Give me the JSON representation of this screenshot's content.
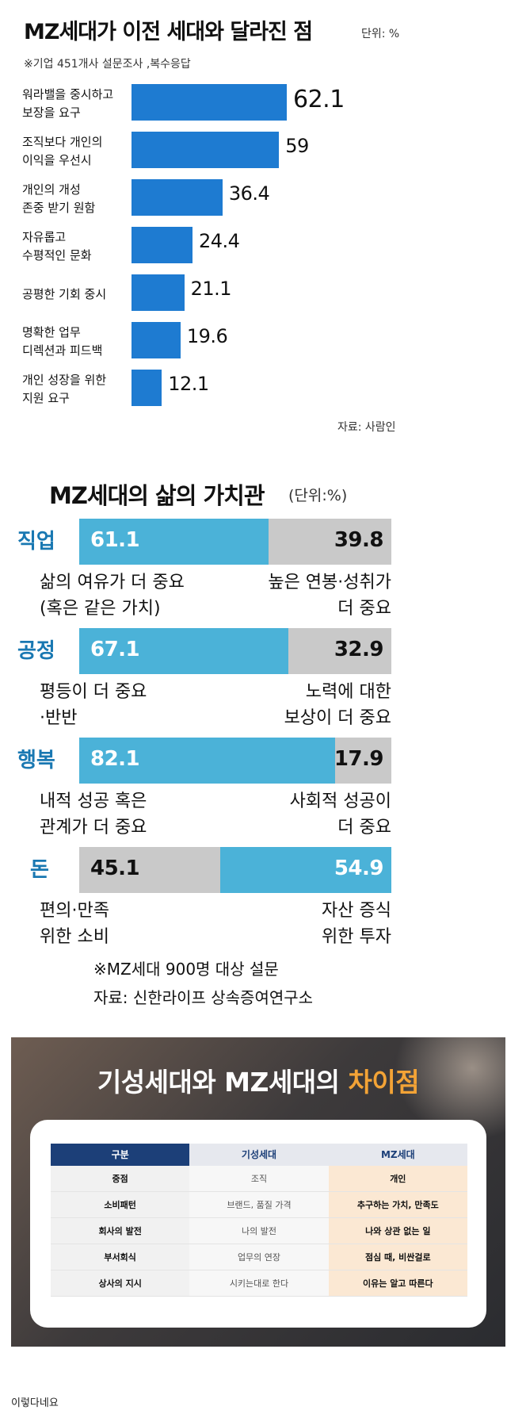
{
  "chart_data": [
    {
      "type": "bar",
      "orientation": "horizontal",
      "title": "MZ세대가 이전 세대와 달라진 점",
      "unit": "단위: %",
      "note": "※기업 451개사 설문조사 ,복수응답",
      "source": "자료: 사람인",
      "categories": [
        [
          "워라밸을 중시하고",
          "보장을 요구"
        ],
        [
          "조직보다 개인의",
          "이익을 우선시"
        ],
        [
          "개인의 개성",
          "존중 받기 원함"
        ],
        [
          "자유롭고",
          "수평적인 문화"
        ],
        [
          "공평한 기회 중시"
        ],
        [
          "명확한 업무",
          "디렉션과 피드백"
        ],
        [
          "개인 성장을 위한",
          "지원 요구"
        ]
      ],
      "values": [
        62.1,
        59,
        36.4,
        24.4,
        21.1,
        19.6,
        12.1
      ],
      "value_labels": [
        "62.1",
        "59",
        "36.4",
        "24.4",
        "21.1",
        "19.6",
        "12.1"
      ],
      "xlim": [
        0,
        62.1
      ],
      "color": "#1e7bd1"
    },
    {
      "type": "bar",
      "orientation": "horizontal-stacked",
      "title": "MZ세대의 삶의 가치관",
      "unit": "(단위:%)",
      "rows": [
        {
          "category": "직업",
          "left_value": 61.1,
          "right_value": 39.8,
          "left_label": "61.1",
          "right_label": "39.8",
          "left_color": "#4bb2d8",
          "right_color": "#c9c9c9",
          "left_text": [
            "삶의 여유가 더 중요",
            "(혹은 같은 가치)"
          ],
          "right_text": [
            "높은 연봉·성취가",
            "더 중요"
          ]
        },
        {
          "category": "공정",
          "left_value": 67.1,
          "right_value": 32.9,
          "left_label": "67.1",
          "right_label": "32.9",
          "left_color": "#4bb2d8",
          "right_color": "#c9c9c9",
          "left_text": [
            "평등이 더 중요",
            "·반반"
          ],
          "right_text": [
            "노력에 대한",
            "보상이 더 중요"
          ]
        },
        {
          "category": "행복",
          "left_value": 82.1,
          "right_value": 17.9,
          "left_label": "82.1",
          "right_label": "17.9",
          "left_color": "#4bb2d8",
          "right_color": "#c9c9c9",
          "left_text": [
            "내적 성공 혹은",
            "관계가 더 중요"
          ],
          "right_text": [
            "사회적 성공이",
            "더 중요"
          ]
        },
        {
          "category": "돈",
          "left_value": 45.1,
          "right_value": 54.9,
          "left_label": "45.1",
          "right_label": "54.9",
          "left_color": "#c9c9c9",
          "right_color": "#4bb2d8",
          "left_text": [
            "편의·만족",
            "위한 소비"
          ],
          "right_text": [
            "자산 증식",
            "위한 투자"
          ]
        }
      ],
      "footnotes": [
        "※MZ세대 900명 대상 설문",
        "자료: 신한라이프 상속증여연구소"
      ]
    },
    {
      "type": "table",
      "title_main": "기성세대와 MZ세대의 ",
      "title_highlight": "차이점",
      "highlight_color": "#f3a336",
      "columns": [
        "구분",
        "기성세대",
        "MZ세대"
      ],
      "rows": [
        [
          "중점",
          "조직",
          "개인"
        ],
        [
          "소비패턴",
          "브랜드, 품질 가격",
          "추구하는 가치, 만족도"
        ],
        [
          "회사의 발전",
          "나의 발전",
          "나와 상관 없는 일"
        ],
        [
          "부서회식",
          "업무의 연장",
          "점심 때, 비싼걸로"
        ],
        [
          "상사의 지시",
          "시키는대로 한다",
          "이유는 알고 따른다"
        ]
      ]
    }
  ],
  "caption": "이렇다네요"
}
